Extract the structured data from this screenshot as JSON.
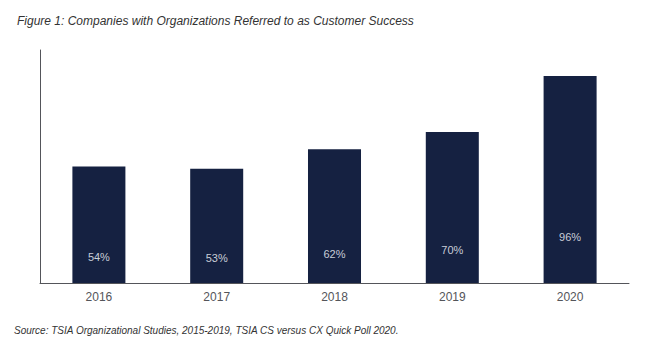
{
  "chart_data": {
    "type": "bar",
    "title": "Figure 1: Companies with Organizations Referred to as Customer Success",
    "annotations": [
      "Source: TSIA Organizational Studies, 2015-2019, TSIA CS versus CX Quick Poll 2020."
    ],
    "categories": [
      "2016",
      "2017",
      "2018",
      "2019",
      "2020"
    ],
    "values": [
      54,
      53,
      62,
      70,
      96
    ],
    "value_labels": [
      "54%",
      "53%",
      "62%",
      "70%",
      "96%"
    ],
    "data_labels": true,
    "color": "#152141",
    "ylim": [
      0,
      108
    ],
    "tick_labels": "x",
    "grid": false
  }
}
